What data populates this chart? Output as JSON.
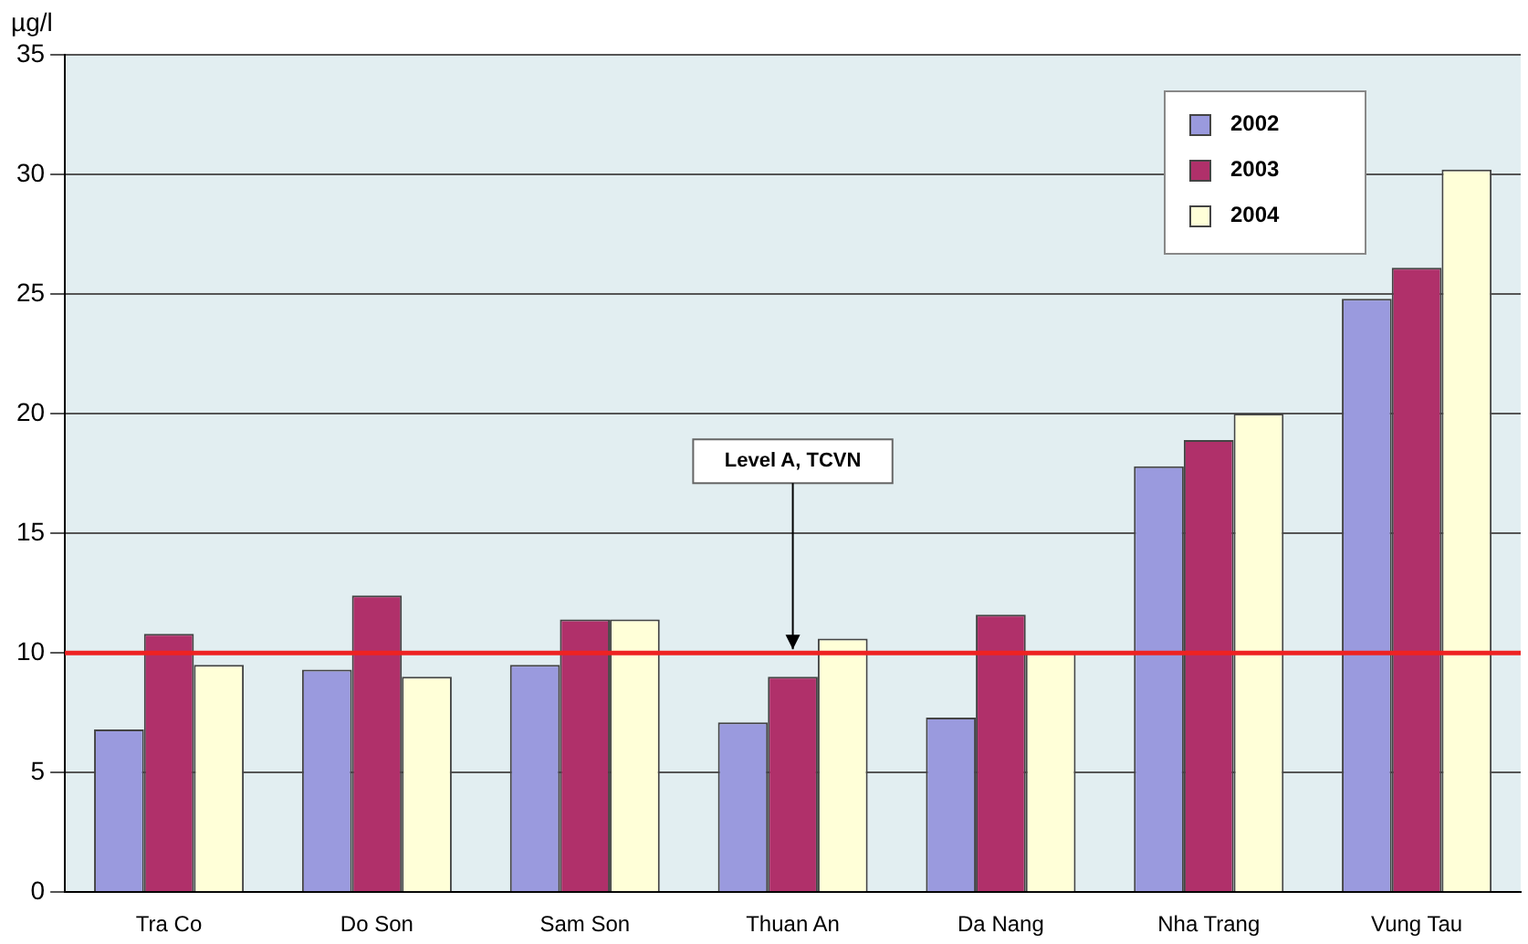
{
  "chart_data": {
    "type": "bar",
    "ylabel": "µg/l",
    "categories": [
      "Tra Co",
      "Do Son",
      "Sam Son",
      "Thuan An",
      "Da Nang",
      "Nha Trang",
      "Vung Tau"
    ],
    "series": [
      {
        "name": "2002",
        "color": "#9a9ade",
        "values": [
          6.8,
          9.3,
          9.5,
          7.1,
          7.3,
          17.8,
          24.8
        ]
      },
      {
        "name": "2003",
        "color": "#b0306a",
        "values": [
          10.8,
          12.4,
          11.4,
          9.0,
          11.6,
          18.9,
          26.1
        ]
      },
      {
        "name": "2004",
        "color": "#ffffd8",
        "values": [
          9.5,
          9.0,
          11.4,
          10.6,
          10.0,
          20.0,
          30.2
        ]
      }
    ],
    "ylim": [
      0,
      35
    ],
    "yticks": [
      0,
      5,
      10,
      15,
      20,
      25,
      30,
      35
    ],
    "grid": "y",
    "legend": "top right",
    "ref_lines": [
      {
        "axis": "y",
        "value": 10,
        "color": "#ee2222"
      }
    ],
    "annotations": [
      {
        "text": "Level A, TCVN",
        "x": "Thuan An",
        "y": 10
      }
    ]
  }
}
